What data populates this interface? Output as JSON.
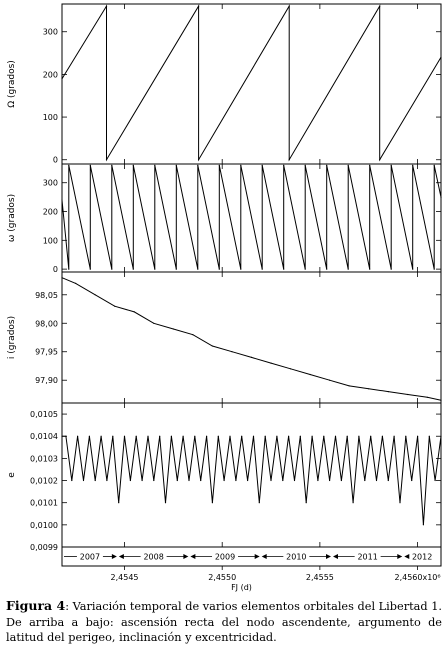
{
  "figure": {
    "x_axis_label": "FJ (d)",
    "x_ticks": [
      "2,4545",
      "2,4550",
      "2,4555",
      "2,4560x10⁶"
    ],
    "x_tick_values": [
      2454500,
      2455000,
      2455500,
      2456000
    ],
    "x_range": [
      2454180,
      2456120
    ],
    "years": [
      {
        "label": "2007",
        "from": 2454180,
        "to": 2454466
      },
      {
        "label": "2008",
        "from": 2454466,
        "to": 2454832
      },
      {
        "label": "2009",
        "from": 2454832,
        "to": 2455197
      },
      {
        "label": "2010",
        "from": 2455197,
        "to": 2455562
      },
      {
        "label": "2011",
        "from": 2455562,
        "to": 2455927
      },
      {
        "label": "2012",
        "from": 2455927,
        "to": 2456120
      }
    ]
  },
  "caption": {
    "label": "Figura 4",
    "text": ": Variación temporal de varios elementos orbitales del Libertad 1. De arriba a bajo: ascensión recta del nodo ascendente, argumento de latitud del perigeo, inclinación y excentricidad."
  },
  "chart_data": [
    {
      "type": "line",
      "ylabel": "Ω  (grados)",
      "ylim": [
        -10,
        365
      ],
      "yticks": [
        0,
        100,
        200,
        300
      ],
      "ytick_labels": [
        "0",
        "100",
        "200",
        "300"
      ],
      "series": [
        {
          "x": [
            2454180,
            2454408,
            2454408,
            2454879,
            2454879,
            2455343,
            2455343,
            2455806,
            2455806,
            2456120
          ],
          "y": [
            190,
            360,
            0,
            360,
            0,
            360,
            0,
            360,
            0,
            240
          ]
        }
      ]
    },
    {
      "type": "line",
      "ylabel": "ω  (grados)",
      "ylim": [
        -10,
        365
      ],
      "yticks": [
        0,
        100,
        200,
        300
      ],
      "ytick_labels": [
        "0",
        "100",
        "200",
        "300"
      ],
      "series": [
        {
          "x": [
            2454180,
            2454215,
            2454215,
            2454325,
            2454325,
            2454435,
            2454435,
            2454545,
            2454545,
            2454655,
            2454655,
            2454765,
            2454765,
            2454875,
            2454875,
            2454985,
            2454985,
            2455095,
            2455095,
            2455205,
            2455205,
            2455315,
            2455315,
            2455425,
            2455425,
            2455535,
            2455535,
            2455645,
            2455645,
            2455755,
            2455755,
            2455865,
            2455865,
            2455975,
            2455975,
            2456085,
            2456085,
            2456120
          ],
          "y": [
            240,
            0,
            360,
            0,
            360,
            0,
            360,
            0,
            360,
            0,
            360,
            0,
            360,
            0,
            360,
            0,
            360,
            0,
            360,
            0,
            360,
            0,
            360,
            0,
            360,
            0,
            360,
            0,
            360,
            0,
            360,
            0,
            360,
            0,
            360,
            0,
            360,
            250
          ]
        }
      ]
    },
    {
      "type": "line",
      "ylabel": "i  (grados)",
      "ylim": [
        97.86,
        98.09
      ],
      "yticks": [
        97.9,
        97.95,
        98.0,
        98.05
      ],
      "ytick_labels": [
        "97,90",
        "97,95",
        "98,00",
        "98,05"
      ],
      "series": [
        {
          "x": [
            2454180,
            2454250,
            2454350,
            2454450,
            2454550,
            2454650,
            2454750,
            2454850,
            2454950,
            2455050,
            2455150,
            2455250,
            2455350,
            2455450,
            2455550,
            2455650,
            2455750,
            2455850,
            2455950,
            2456050,
            2456120
          ],
          "y": [
            98.08,
            98.07,
            98.05,
            98.03,
            98.02,
            98.0,
            97.99,
            97.98,
            97.96,
            97.95,
            97.94,
            97.93,
            97.92,
            97.91,
            97.9,
            97.89,
            97.885,
            97.88,
            97.875,
            97.87,
            97.865
          ]
        }
      ]
    },
    {
      "type": "line",
      "ylabel": "e",
      "ylim": [
        0.0099,
        0.01055
      ],
      "yticks": [
        0.0099,
        0.01,
        0.0101,
        0.0102,
        0.0103,
        0.0104,
        0.0105
      ],
      "ytick_labels": [
        "0,0099",
        "0,0100",
        "0,0101",
        "0,0102",
        "0,0103",
        "0,0104",
        "0,0105"
      ],
      "series": [
        {
          "x": [
            2454180,
            2454200,
            2454230,
            2454260,
            2454290,
            2454320,
            2454350,
            2454380,
            2454410,
            2454440,
            2454470,
            2454500,
            2454530,
            2454560,
            2454590,
            2454620,
            2454650,
            2454680,
            2454710,
            2454740,
            2454770,
            2454800,
            2454830,
            2454860,
            2454890,
            2454920,
            2454950,
            2454980,
            2455010,
            2455040,
            2455070,
            2455100,
            2455130,
            2455160,
            2455190,
            2455220,
            2455250,
            2455280,
            2455310,
            2455340,
            2455370,
            2455400,
            2455430,
            2455460,
            2455490,
            2455520,
            2455550,
            2455580,
            2455610,
            2455640,
            2455670,
            2455700,
            2455730,
            2455760,
            2455790,
            2455820,
            2455850,
            2455880,
            2455910,
            2455940,
            2455970,
            2456000,
            2456030,
            2456060,
            2456090,
            2456120
          ],
          "y": [
            0.0104,
            0.0104,
            0.0102,
            0.0104,
            0.0102,
            0.0104,
            0.0102,
            0.0104,
            0.0102,
            0.0104,
            0.0101,
            0.0104,
            0.0102,
            0.0104,
            0.0102,
            0.0104,
            0.0102,
            0.0104,
            0.0101,
            0.0104,
            0.0102,
            0.0104,
            0.0102,
            0.0104,
            0.0102,
            0.0104,
            0.0101,
            0.0104,
            0.0102,
            0.0104,
            0.0102,
            0.0104,
            0.0102,
            0.0104,
            0.0101,
            0.0104,
            0.0102,
            0.0104,
            0.0102,
            0.0104,
            0.0102,
            0.0104,
            0.0101,
            0.0104,
            0.0102,
            0.0104,
            0.0102,
            0.0104,
            0.0102,
            0.0104,
            0.0101,
            0.0104,
            0.0102,
            0.0104,
            0.0102,
            0.0104,
            0.0102,
            0.0104,
            0.0101,
            0.0104,
            0.0102,
            0.0104,
            0.01,
            0.0104,
            0.0102,
            0.0104
          ]
        }
      ]
    }
  ]
}
